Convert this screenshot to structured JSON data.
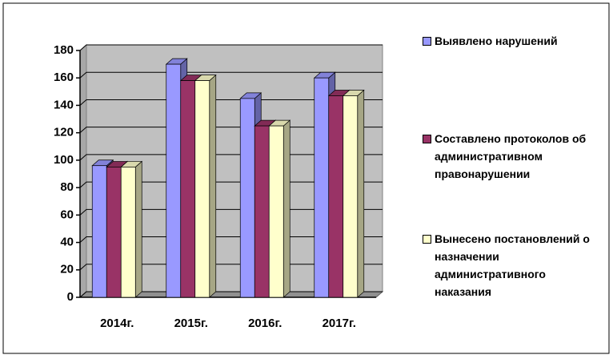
{
  "chart_data": {
    "type": "bar3d",
    "categories": [
      "2014г.",
      "2015г.",
      "2016г.",
      "2017г."
    ],
    "series": [
      {
        "name": "Выявлено нарушений",
        "color": "#9999ff",
        "values": [
          96,
          170,
          145,
          160
        ]
      },
      {
        "name": "Составлено протоколов об административном правонарушении",
        "color": "#993366",
        "values": [
          95,
          158,
          125,
          147
        ]
      },
      {
        "name": "Вынесено постановлений о назначении административного наказания",
        "color": "#ffffcc",
        "values": [
          95,
          158,
          125,
          147
        ]
      }
    ],
    "ylim": [
      0,
      180
    ],
    "yticks": [
      0,
      20,
      40,
      60,
      80,
      100,
      120,
      140,
      160,
      180
    ],
    "grid": true,
    "legend": "right"
  }
}
